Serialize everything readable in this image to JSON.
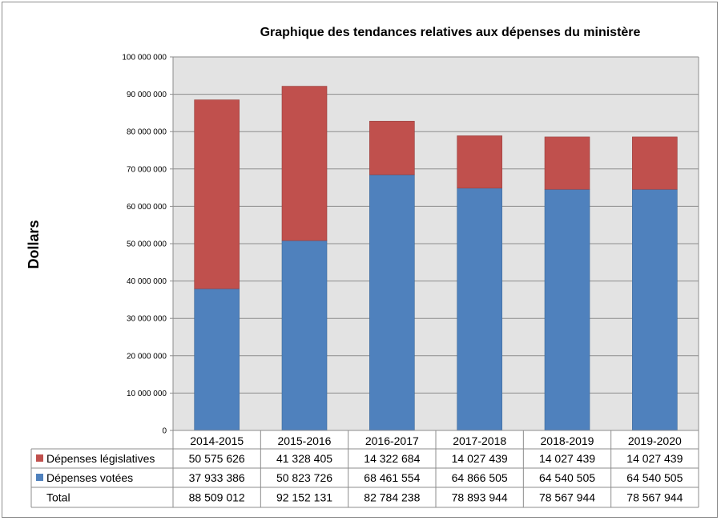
{
  "chart_data": {
    "type": "bar",
    "stacked": true,
    "title": "Graphique des tendances relatives aux dépenses du ministère",
    "ylabel": "Dollars",
    "xlabel": "",
    "ylim": [
      0,
      100000000
    ],
    "ytick_step": 10000000,
    "ytick_labels": [
      "0",
      "10 000 000",
      "20 000 000",
      "30 000 000",
      "40 000 000",
      "50 000 000",
      "60 000 000",
      "70 000 000",
      "80 000 000",
      "90 000 000",
      "100 000 000"
    ],
    "grid": true,
    "legend": "table-left",
    "categories": [
      "2014-2015",
      "2015-2016",
      "2016-2017",
      "2017-2018",
      "2018-2019",
      "2019-2020"
    ],
    "series": [
      {
        "name": "Dépenses votées",
        "color": "#4f81bd",
        "values": [
          37933386,
          50823726,
          68461554,
          64866505,
          64540505,
          64540505
        ],
        "labels": [
          "37 933 386",
          "50 823 726",
          "68 461 554",
          "64 866 505",
          "64 540 505",
          "64 540 505"
        ]
      },
      {
        "name": "Dépenses législatives",
        "color": "#c0504d",
        "values": [
          50575626,
          41328405,
          14322684,
          14027439,
          14027439,
          14027439
        ],
        "labels": [
          "50 575 626",
          "41 328 405",
          "14 322 684",
          "14 027 439",
          "14 027 439",
          "14 027 439"
        ]
      }
    ],
    "total": {
      "name": "Total",
      "values": [
        88509012,
        92152131,
        82784238,
        78893944,
        78567944,
        78567944
      ],
      "labels": [
        "88 509 012",
        "92 152 131",
        "82 784 238",
        "78 893 944",
        "78 567 944",
        "78 567 944"
      ]
    },
    "table_row_order": [
      "Dépenses législatives",
      "Dépenses votées",
      "Total"
    ]
  }
}
